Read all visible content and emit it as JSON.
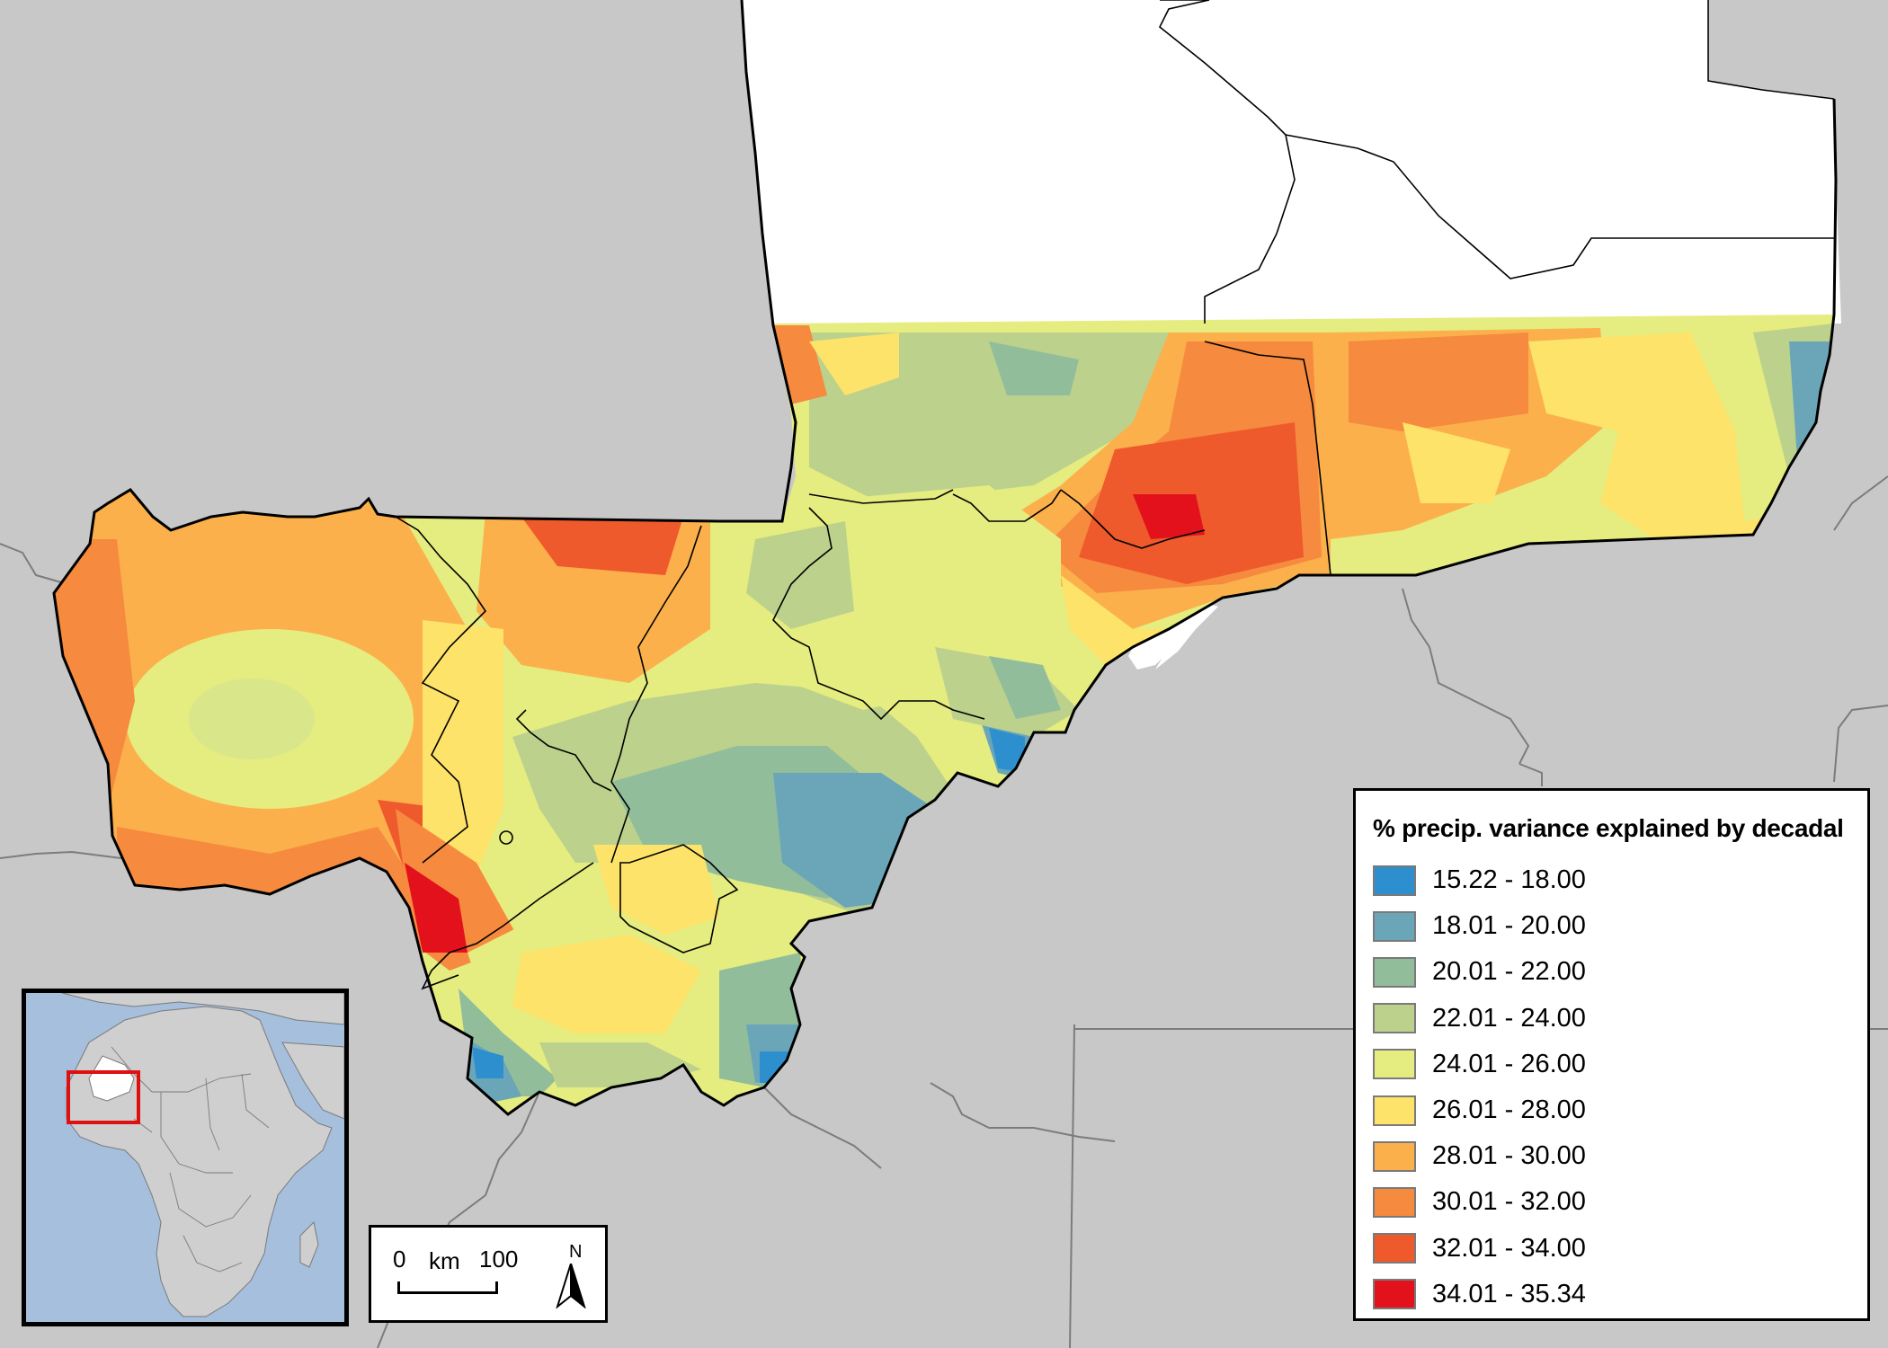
{
  "legend": {
    "title": "% precip. variance explained by decadal",
    "classes": [
      {
        "label": "15.22 - 18.00",
        "color": "#2e8fcf"
      },
      {
        "label": "18.01 - 20.00",
        "color": "#6aa6b8"
      },
      {
        "label": "20.01 - 22.00",
        "color": "#92bd9a"
      },
      {
        "label": "22.01 - 24.00",
        "color": "#bcd18c"
      },
      {
        "label": "24.01 - 26.00",
        "color": "#e5ec80"
      },
      {
        "label": "26.01 - 28.00",
        "color": "#fde36a"
      },
      {
        "label": "28.01 - 30.00",
        "color": "#fbb04c"
      },
      {
        "label": "30.01 - 32.00",
        "color": "#f68a3e"
      },
      {
        "label": "32.01 - 34.00",
        "color": "#ee5a2c"
      },
      {
        "label": "34.01 - 35.34",
        "color": "#e3111b"
      }
    ]
  },
  "scale_bar": {
    "zero": "0",
    "unit": "km",
    "max": "100"
  },
  "north_arrow": {
    "letter": "N"
  },
  "colors": {
    "background_land": "#c8c8c8",
    "no_data": "#ffffff",
    "ocean": "#a5bfdc",
    "inset_highlight": "#e01010"
  }
}
